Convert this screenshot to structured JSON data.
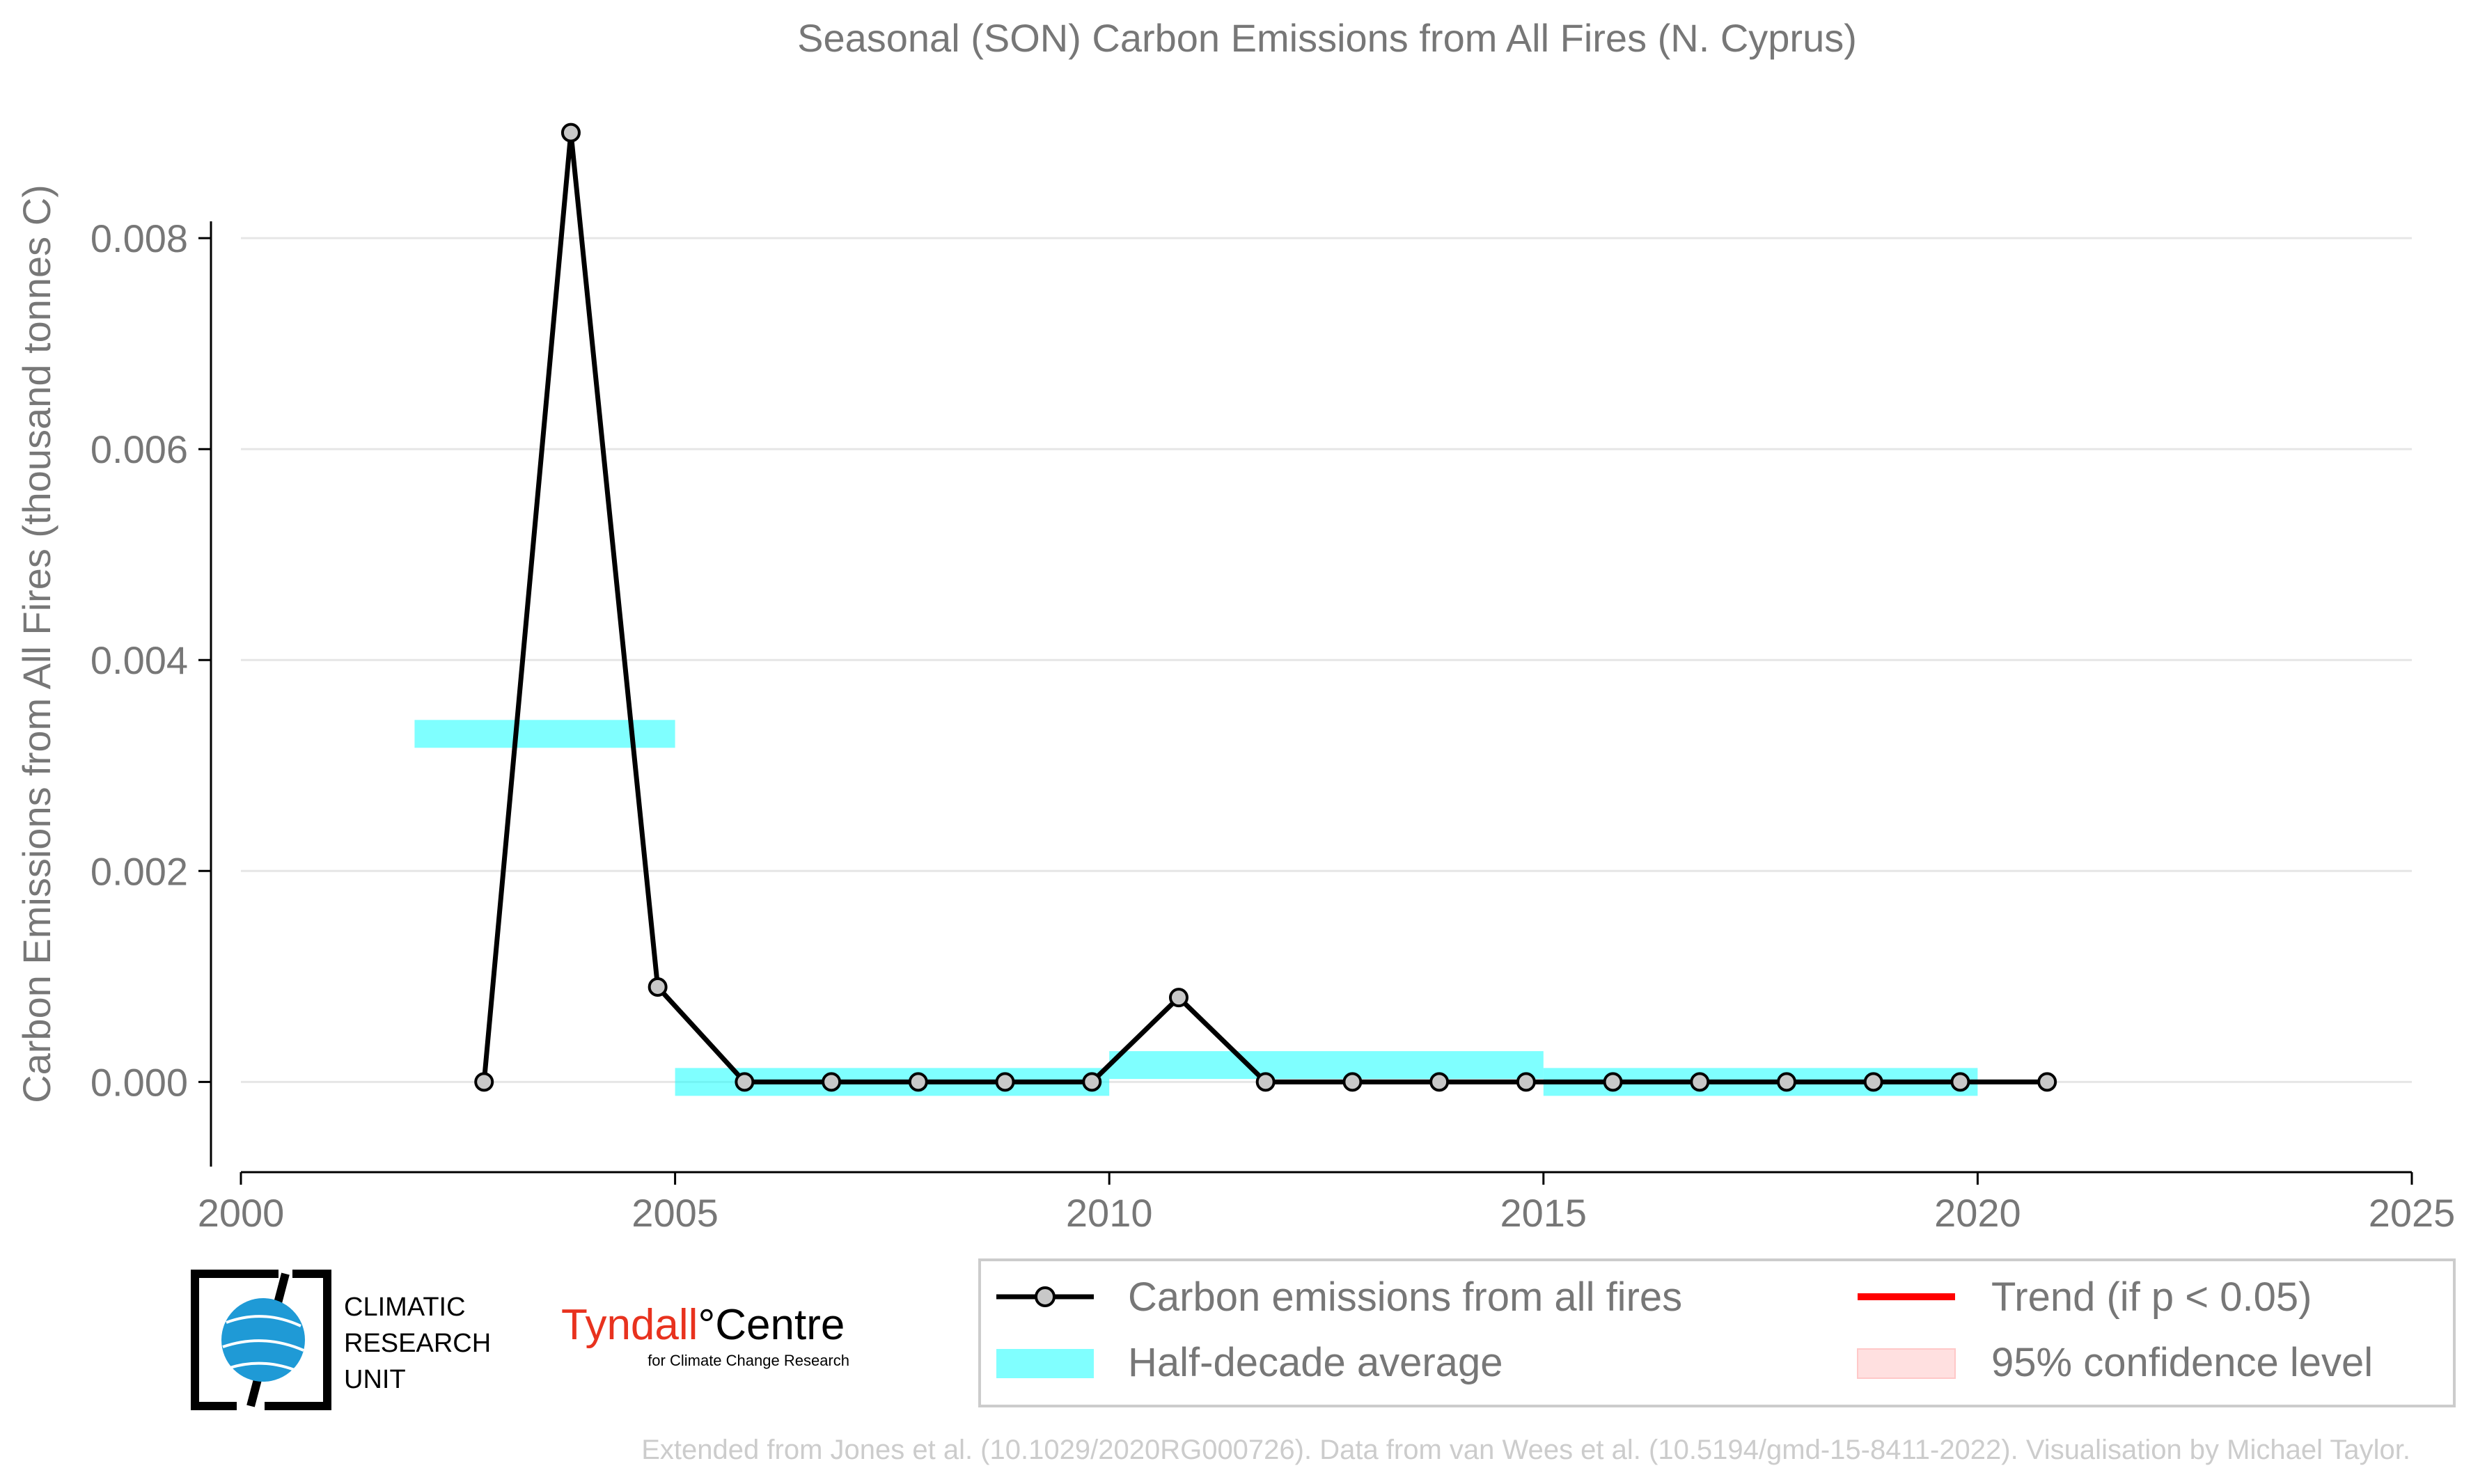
{
  "chart_data": {
    "type": "line",
    "title": "Seasonal (SON) Carbon Emissions from All Fires (N. Cyprus)",
    "xlabel": "",
    "ylabel": "Carbon Emissions from All Fires (thousand tonnes C)",
    "xlim": [
      2000,
      2025
    ],
    "ylim": [
      -0.00075,
      0.0094
    ],
    "x_ticks": [
      "2000",
      "2005",
      "2010",
      "2015",
      "2020",
      "2025"
    ],
    "y_ticks": [
      "0.000",
      "0.002",
      "0.004",
      "0.006",
      "0.008"
    ],
    "y_tick_values": [
      0,
      0.002,
      0.004,
      0.006,
      0.008
    ],
    "x_tick_values": [
      2000,
      2005,
      2010,
      2015,
      2020,
      2025
    ],
    "grid": true,
    "series": [
      {
        "name": "Carbon emissions from all fires",
        "color": "#000000",
        "marker_color": "#c8c8c8",
        "x": [
          2002.8,
          2003.8,
          2004.8,
          2005.8,
          2006.8,
          2007.8,
          2008.8,
          2009.8,
          2010.8,
          2011.8,
          2012.8,
          2013.8,
          2014.8,
          2015.8,
          2016.8,
          2017.8,
          2018.8,
          2019.8,
          2020.8
        ],
        "y": [
          0.0,
          0.009,
          0.0009,
          0.0,
          0.0,
          0.0,
          0.0,
          0.0,
          0.0008,
          0.0,
          0.0,
          0.0,
          0.0,
          0.0,
          0.0,
          0.0,
          0.0,
          0.0,
          0.0
        ]
      }
    ],
    "half_decade_average": {
      "name": "Half-decade average",
      "color": "#00ffff",
      "segments": [
        {
          "x0": 2002,
          "x1": 2005,
          "y": 0.0033
        },
        {
          "x0": 2005,
          "x1": 2010,
          "y": 0.0
        },
        {
          "x0": 2010,
          "x1": 2015,
          "y": 0.00016
        },
        {
          "x0": 2015,
          "x1": 2020,
          "y": 0.0
        }
      ]
    },
    "legend": {
      "placement": "bottom-right",
      "entries": [
        {
          "label": "Carbon emissions from all fires",
          "kind": "line-marker",
          "color": "#000000"
        },
        {
          "label": "Trend (if p < 0.05)",
          "kind": "line",
          "color": "#ff0000"
        },
        {
          "label": "Half-decade average",
          "kind": "patch",
          "color": "#80ffff"
        },
        {
          "label": "95% confidence level",
          "kind": "patch",
          "color": "#ffe0e0"
        }
      ]
    }
  },
  "logos": {
    "cru_line1": "CLIMATIC",
    "cru_line2": "RESEARCH",
    "cru_line3": "UNIT",
    "tyndall_main": "Tyndall",
    "tyndall_centre": "°Centre",
    "tyndall_sub": "for Climate Change Research"
  },
  "footer": "Extended from Jones et al. (10.1029/2020RG000726). Data from van Wees et al. (10.5194/gmd-15-8411-2022). Visualisation by Michael Taylor."
}
